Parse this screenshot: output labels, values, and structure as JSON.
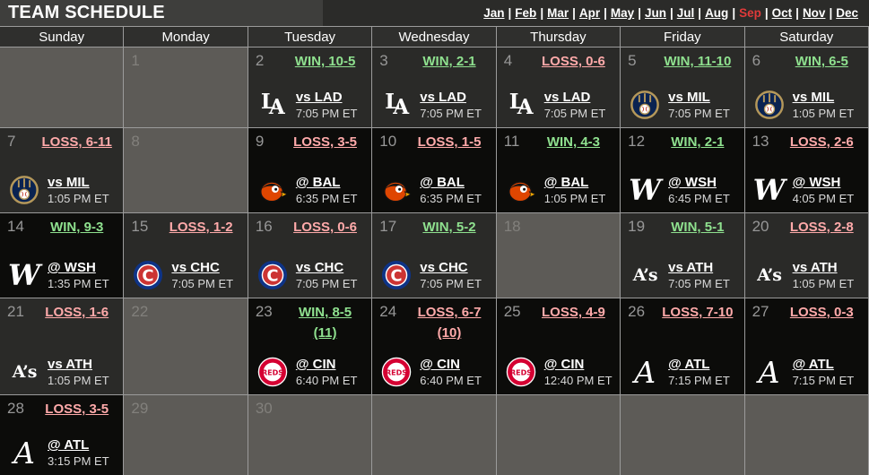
{
  "title": "TEAM SCHEDULE",
  "month_nav": {
    "months": [
      "Jan",
      "Feb",
      "Mar",
      "Apr",
      "May",
      "Jun",
      "Jul",
      "Aug",
      "Sep",
      "Oct",
      "Nov",
      "Dec"
    ],
    "selected": "Sep",
    "separator": "|"
  },
  "day_headers": [
    "Sunday",
    "Monday",
    "Tuesday",
    "Wednesday",
    "Thursday",
    "Friday",
    "Saturday"
  ],
  "colors": {
    "win_text": "#8fe18f",
    "loss_text": "#ffaaaa",
    "selected_month": "#e03a3a",
    "home_cell_bg": "#2a2a28",
    "away_cell_bg": "#0c0c0a",
    "empty_cell_bg": "#5d5b57"
  },
  "weeks": [
    [
      {
        "type": "blank"
      },
      {
        "type": "empty",
        "day": "1"
      },
      {
        "type": "game",
        "day": "2",
        "result": "WIN, 10-5",
        "outcome": "win",
        "site": "home",
        "team": "LAD",
        "opponent": "vs LAD",
        "time": "7:05 PM ET"
      },
      {
        "type": "game",
        "day": "3",
        "result": "WIN, 2-1",
        "outcome": "win",
        "site": "home",
        "team": "LAD",
        "opponent": "vs LAD",
        "time": "7:05 PM ET"
      },
      {
        "type": "game",
        "day": "4",
        "result": "LOSS, 0-6",
        "outcome": "loss",
        "site": "home",
        "team": "LAD",
        "opponent": "vs LAD",
        "time": "7:05 PM ET"
      },
      {
        "type": "game",
        "day": "5",
        "result": "WIN, 11-10",
        "outcome": "win",
        "site": "home",
        "team": "MIL",
        "opponent": "vs MIL",
        "time": "7:05 PM ET"
      },
      {
        "type": "game",
        "day": "6",
        "result": "WIN, 6-5",
        "outcome": "win",
        "site": "home",
        "team": "MIL",
        "opponent": "vs MIL",
        "time": "1:05 PM ET"
      }
    ],
    [
      {
        "type": "game",
        "day": "7",
        "result": "LOSS, 6-11",
        "outcome": "loss",
        "site": "home",
        "team": "MIL",
        "opponent": "vs MIL",
        "time": "1:05 PM ET"
      },
      {
        "type": "empty",
        "day": "8"
      },
      {
        "type": "game",
        "day": "9",
        "result": "LOSS, 3-5",
        "outcome": "loss",
        "site": "away",
        "team": "BAL",
        "opponent": "@ BAL",
        "time": "6:35 PM ET"
      },
      {
        "type": "game",
        "day": "10",
        "result": "LOSS, 1-5",
        "outcome": "loss",
        "site": "away",
        "team": "BAL",
        "opponent": "@ BAL",
        "time": "6:35 PM ET"
      },
      {
        "type": "game",
        "day": "11",
        "result": "WIN, 4-3",
        "outcome": "win",
        "site": "away",
        "team": "BAL",
        "opponent": "@ BAL",
        "time": "1:05 PM ET"
      },
      {
        "type": "game",
        "day": "12",
        "result": "WIN, 2-1",
        "outcome": "win",
        "site": "away",
        "team": "WSH",
        "opponent": "@ WSH",
        "time": "6:45 PM ET"
      },
      {
        "type": "game",
        "day": "13",
        "result": "LOSS, 2-6",
        "outcome": "loss",
        "site": "away",
        "team": "WSH",
        "opponent": "@ WSH",
        "time": "4:05 PM ET"
      }
    ],
    [
      {
        "type": "game",
        "day": "14",
        "result": "WIN, 9-3",
        "outcome": "win",
        "site": "away",
        "team": "WSH",
        "opponent": "@ WSH",
        "time": "1:35 PM ET"
      },
      {
        "type": "game",
        "day": "15",
        "result": "LOSS, 1-2",
        "outcome": "loss",
        "site": "home",
        "team": "CHC",
        "opponent": "vs CHC",
        "time": "7:05 PM ET"
      },
      {
        "type": "game",
        "day": "16",
        "result": "LOSS, 0-6",
        "outcome": "loss",
        "site": "home",
        "team": "CHC",
        "opponent": "vs CHC",
        "time": "7:05 PM ET"
      },
      {
        "type": "game",
        "day": "17",
        "result": "WIN, 5-2",
        "outcome": "win",
        "site": "home",
        "team": "CHC",
        "opponent": "vs CHC",
        "time": "7:05 PM ET"
      },
      {
        "type": "empty",
        "day": "18"
      },
      {
        "type": "game",
        "day": "19",
        "result": "WIN, 5-1",
        "outcome": "win",
        "site": "home",
        "team": "ATH",
        "opponent": "vs ATH",
        "time": "7:05 PM ET"
      },
      {
        "type": "game",
        "day": "20",
        "result": "LOSS, 2-8",
        "outcome": "loss",
        "site": "home",
        "team": "ATH",
        "opponent": "vs ATH",
        "time": "1:05 PM ET"
      }
    ],
    [
      {
        "type": "game",
        "day": "21",
        "result": "LOSS, 1-6",
        "outcome": "loss",
        "site": "home",
        "team": "ATH",
        "opponent": "vs ATH",
        "time": "1:05 PM ET"
      },
      {
        "type": "empty",
        "day": "22"
      },
      {
        "type": "game",
        "day": "23",
        "result": "WIN, 8-5 (11)",
        "outcome": "win",
        "site": "away",
        "team": "CIN",
        "opponent": "@ CIN",
        "time": "6:40 PM ET"
      },
      {
        "type": "game",
        "day": "24",
        "result": "LOSS, 6-7 (10)",
        "outcome": "loss",
        "site": "away",
        "team": "CIN",
        "opponent": "@ CIN",
        "time": "6:40 PM ET"
      },
      {
        "type": "game",
        "day": "25",
        "result": "LOSS, 4-9",
        "outcome": "loss",
        "site": "away",
        "team": "CIN",
        "opponent": "@ CIN",
        "time": "12:40 PM ET"
      },
      {
        "type": "game",
        "day": "26",
        "result": "LOSS, 7-10",
        "outcome": "loss",
        "site": "away",
        "team": "ATL",
        "opponent": "@ ATL",
        "time": "7:15 PM ET"
      },
      {
        "type": "game",
        "day": "27",
        "result": "LOSS, 0-3",
        "outcome": "loss",
        "site": "away",
        "team": "ATL",
        "opponent": "@ ATL",
        "time": "7:15 PM ET"
      }
    ],
    [
      {
        "type": "game",
        "day": "28",
        "result": "LOSS, 3-5",
        "outcome": "loss",
        "site": "away",
        "team": "ATL",
        "opponent": "@ ATL",
        "time": "3:15 PM ET"
      },
      {
        "type": "empty",
        "day": "29"
      },
      {
        "type": "empty",
        "day": "30"
      },
      {
        "type": "blank"
      },
      {
        "type": "blank"
      },
      {
        "type": "blank"
      },
      {
        "type": "blank"
      }
    ]
  ]
}
